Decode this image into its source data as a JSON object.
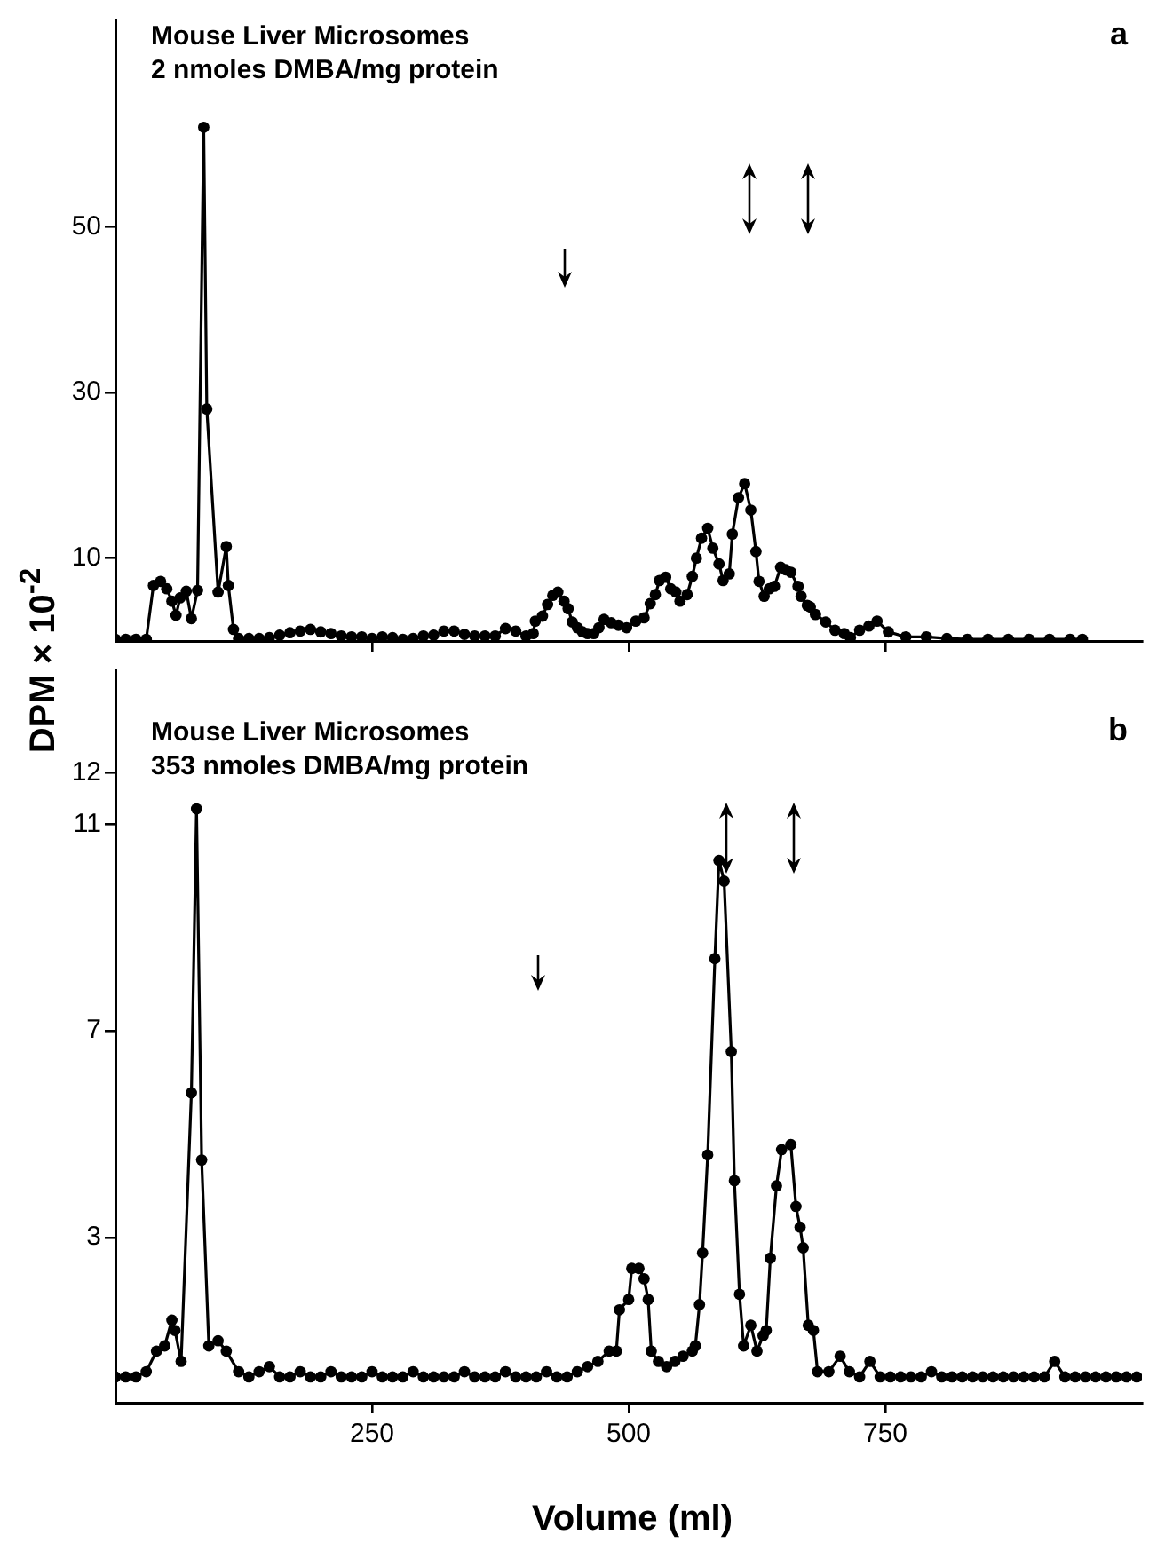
{
  "chart_data": [
    {
      "type": "line",
      "title": "Mouse Liver Microsomes",
      "subtitle": "2 nmoles DMBA/mg protein",
      "annotations": [
        "a"
      ],
      "ylabel": "DPM × 10$^{-2}$",
      "xlim": [
        0,
        1000
      ],
      "xticks": [
        250,
        500,
        750
      ],
      "ylim": [
        0,
        75
      ],
      "yticks": [
        10,
        30,
        50
      ],
      "tick_labels": "y",
      "grid": false,
      "legend": false,
      "marker": "circle",
      "line_style": "solid",
      "x": [
        0,
        10,
        20,
        30,
        37,
        44,
        50,
        55,
        59,
        63,
        69,
        74,
        80,
        86,
        89,
        100,
        108,
        110,
        115,
        120,
        130,
        140,
        150,
        160,
        170,
        180,
        190,
        200,
        210,
        220,
        230,
        240,
        250,
        260,
        270,
        280,
        290,
        300,
        310,
        320,
        330,
        340,
        350,
        360,
        370,
        380,
        390,
        400,
        407,
        409,
        416,
        421,
        426,
        431,
        437,
        441,
        445,
        450,
        455,
        460,
        466,
        471,
        476,
        483,
        490,
        498,
        507,
        515,
        521,
        526,
        530,
        536,
        541,
        546,
        550,
        557,
        562,
        566,
        571,
        577,
        582,
        588,
        592,
        598,
        601,
        607,
        613,
        619,
        624,
        627,
        632,
        637,
        642,
        648,
        653,
        658,
        665,
        668,
        674,
        677,
        682,
        692,
        701,
        710,
        716,
        725,
        734,
        742,
        753,
        770,
        790,
        810,
        830,
        850,
        870,
        890,
        910,
        930,
        942
      ],
      "series": [
        {
          "color": "#000000",
          "values": [
            0.2,
            0.2,
            0.2,
            0.2,
            6.7,
            7.2,
            6.3,
            4.8,
            3.1,
            5.2,
            6.0,
            2.7,
            6.1,
            62,
            28,
            5.9,
            11.4,
            6.7,
            1.4,
            0.3,
            0.3,
            0.3,
            0.4,
            0.7,
            1.0,
            1.2,
            1.4,
            1.1,
            0.9,
            0.6,
            0.5,
            0.5,
            0.3,
            0.5,
            0.4,
            0.2,
            0.3,
            0.6,
            0.7,
            1.2,
            1.2,
            0.8,
            0.6,
            0.6,
            0.6,
            1.5,
            1.2,
            0.6,
            0.9,
            2.4,
            3.0,
            4.4,
            5.5,
            5.9,
            4.8,
            3.9,
            2.3,
            1.6,
            1.1,
            0.9,
            0.9,
            1.6,
            2.6,
            2.2,
            1.9,
            1.6,
            2.4,
            2.8,
            4.5,
            5.6,
            7.3,
            7.7,
            6.3,
            5.9,
            4.8,
            5.6,
            7.8,
            10.0,
            12.4,
            13.6,
            11.2,
            9.3,
            7.3,
            8.1,
            12.9,
            17.3,
            19.0,
            15.8,
            10.8,
            7.2,
            5.4,
            6.3,
            6.6,
            8.9,
            8.6,
            8.3,
            6.6,
            5.4,
            4.3,
            4.1,
            3.2,
            2.3,
            1.3,
            0.9,
            0.4,
            1.3,
            1.8,
            2.4,
            1.1,
            0.5,
            0.5,
            0.3,
            0.2,
            0.2,
            0.2,
            0.2,
            0.2,
            0.2,
            0.2
          ]
        }
      ]
    },
    {
      "type": "line",
      "title": "Mouse Liver Microsomes",
      "subtitle": "353 nmoles DMBA/mg protein",
      "annotations": [
        "b"
      ],
      "xlabel": "Volume (ml)",
      "xlim": [
        0,
        1000
      ],
      "xticks": [
        250,
        500,
        750
      ],
      "ylim": [
        -0.2,
        14
      ],
      "yticks": [
        3,
        7,
        11,
        12
      ],
      "grid": false,
      "legend": false,
      "marker": "circle",
      "line_style": "solid",
      "x": [
        0,
        10,
        20,
        30,
        40,
        48,
        55,
        58,
        64,
        74,
        79,
        84,
        91,
        100,
        108,
        120,
        130,
        140,
        150,
        160,
        170,
        180,
        190,
        200,
        210,
        220,
        230,
        240,
        250,
        260,
        270,
        280,
        290,
        300,
        310,
        320,
        330,
        340,
        350,
        360,
        370,
        380,
        390,
        400,
        410,
        420,
        430,
        440,
        450,
        460,
        470,
        481,
        488,
        491,
        500,
        503,
        510,
        515,
        519,
        522,
        529,
        537,
        545,
        553,
        562,
        565,
        569,
        572,
        577,
        584,
        588,
        593,
        600,
        603,
        608,
        612,
        619,
        625,
        631,
        634,
        638,
        644,
        649,
        658,
        663,
        667,
        670,
        675,
        680,
        684,
        695,
        706,
        715,
        725,
        735,
        745,
        755,
        765,
        775,
        785,
        795,
        805,
        815,
        825,
        835,
        845,
        855,
        865,
        875,
        885,
        895,
        905,
        915,
        925,
        935,
        945,
        955,
        965,
        975,
        985,
        995
      ],
      "series": [
        {
          "color": "#000000",
          "values": [
            0.3,
            0.3,
            0.3,
            0.4,
            0.8,
            0.9,
            1.4,
            1.2,
            0.6,
            5.8,
            11.3,
            4.5,
            0.9,
            1.0,
            0.8,
            0.4,
            0.3,
            0.4,
            0.5,
            0.3,
            0.3,
            0.4,
            0.3,
            0.3,
            0.4,
            0.3,
            0.3,
            0.3,
            0.4,
            0.3,
            0.3,
            0.3,
            0.4,
            0.3,
            0.3,
            0.3,
            0.3,
            0.4,
            0.3,
            0.3,
            0.3,
            0.4,
            0.3,
            0.3,
            0.3,
            0.4,
            0.3,
            0.3,
            0.4,
            0.5,
            0.6,
            0.8,
            0.8,
            1.6,
            1.8,
            2.4,
            2.4,
            2.2,
            1.8,
            0.8,
            0.6,
            0.5,
            0.6,
            0.7,
            0.8,
            0.9,
            1.7,
            2.7,
            4.6,
            8.4,
            10.3,
            9.9,
            6.6,
            4.1,
            1.9,
            0.9,
            1.3,
            0.8,
            1.1,
            1.2,
            2.6,
            4.0,
            4.7,
            4.8,
            3.6,
            3.2,
            2.8,
            1.3,
            1.2,
            0.4,
            0.4,
            0.7,
            0.4,
            0.3,
            0.6,
            0.3,
            0.3,
            0.3,
            0.3,
            0.3,
            0.4,
            0.3,
            0.3,
            0.3,
            0.3,
            0.3,
            0.3,
            0.3,
            0.3,
            0.3,
            0.3,
            0.3,
            0.6,
            0.3,
            0.3,
            0.3,
            0.3,
            0.3,
            0.3,
            0.3,
            0.3
          ]
        }
      ]
    }
  ]
}
